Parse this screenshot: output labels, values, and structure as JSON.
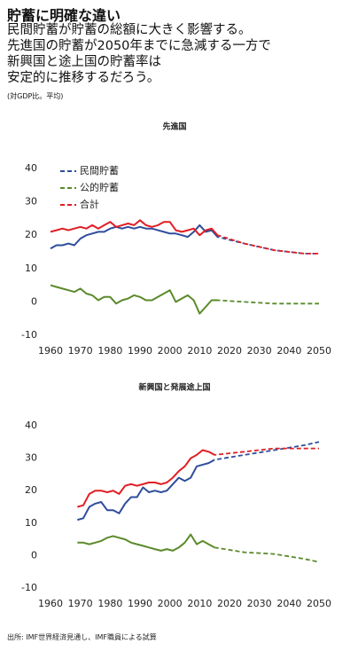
{
  "header": {
    "title": "貯蓄に明確な違い",
    "subtitle": [
      "民間貯蓄が貯蓄の総額に大きく影響する。",
      "先進国の貯蓄が2050年までに急減する一方で",
      "新興国と途上国の貯蓄率は",
      "安定的に推移するだろう。"
    ],
    "note": "(対GDP比。平均)"
  },
  "footer": {
    "source": "出所: IMF世界経済見通し、IMF職員による試算"
  },
  "chart_data": [
    {
      "type": "line",
      "title": "先進国",
      "legend": "upper left",
      "dashed_from": 2016,
      "x": [
        1960,
        1962,
        1964,
        1966,
        1968,
        1970,
        1972,
        1974,
        1976,
        1978,
        1980,
        1982,
        1984,
        1986,
        1988,
        1990,
        1992,
        1994,
        1996,
        1998,
        2000,
        2002,
        2004,
        2006,
        2008,
        2010,
        2012,
        2014,
        2016,
        2025,
        2035,
        2045,
        2050
      ],
      "xlim": [
        1960,
        2050
      ],
      "xticks": [
        1960,
        1970,
        1980,
        1990,
        2000,
        2010,
        2020,
        2030,
        2040,
        2050
      ],
      "ylim": [
        -10,
        40
      ],
      "yticks": [
        -10,
        0,
        10,
        20,
        30,
        40
      ],
      "series": [
        {
          "name": "民間貯蓄",
          "color": "#2e4d9b",
          "values": [
            16,
            17,
            17,
            17.5,
            17,
            19,
            20,
            20.5,
            21,
            21,
            22,
            22.5,
            22,
            22.5,
            22,
            22.5,
            22,
            22,
            21.5,
            21,
            20.5,
            20.5,
            20,
            19.5,
            21,
            23,
            21,
            21.5,
            19.5,
            17.5,
            15.5,
            14.5,
            14.5
          ]
        },
        {
          "name": "公的貯蓄",
          "color": "#5a8a2a",
          "values": [
            5,
            4.5,
            4,
            3.5,
            3,
            4,
            2.5,
            2,
            0.5,
            1.5,
            1.5,
            -0.5,
            0.5,
            1,
            2,
            1.5,
            0.5,
            0.5,
            1.5,
            2.5,
            3.5,
            0,
            1,
            2,
            0.5,
            -3.5,
            -1.5,
            0.5,
            0.5,
            0,
            -0.5,
            -0.5,
            -0.5
          ]
        },
        {
          "name": "合計",
          "color": "#e01e24",
          "values": [
            21,
            21.5,
            22,
            21.5,
            22,
            22.5,
            22,
            23,
            22,
            23,
            24,
            22.5,
            23,
            23.5,
            23,
            24.5,
            23,
            22.5,
            23,
            24,
            24,
            21.5,
            21,
            21.5,
            22,
            20,
            21.5,
            22,
            20,
            17.5,
            15.5,
            14.5,
            14.5
          ]
        }
      ]
    },
    {
      "type": "line",
      "title": "新興国と発展途上国",
      "dashed_from": 2015,
      "x": [
        1969,
        1971,
        1973,
        1975,
        1977,
        1979,
        1981,
        1983,
        1985,
        1987,
        1989,
        1991,
        1993,
        1995,
        1997,
        1999,
        2001,
        2003,
        2005,
        2007,
        2009,
        2011,
        2013,
        2015,
        2025,
        2035,
        2045,
        2050
      ],
      "xlim": [
        1960,
        2050
      ],
      "xticks": [
        1960,
        1970,
        1980,
        1990,
        2000,
        2010,
        2020,
        2030,
        2040,
        2050
      ],
      "ylim": [
        -10,
        40
      ],
      "yticks": [
        -10,
        0,
        10,
        20,
        30,
        40
      ],
      "series": [
        {
          "color": "#2e4d9b",
          "values": [
            11,
            11.5,
            15,
            16,
            16.5,
            14,
            14,
            13,
            16,
            18,
            18,
            21,
            19.5,
            20,
            19.5,
            20,
            22,
            24,
            23,
            24,
            27.5,
            28,
            28.5,
            29.5,
            31,
            32.5,
            34,
            35
          ]
        },
        {
          "color": "#5a8a2a",
          "values": [
            4,
            4,
            3.5,
            4,
            4.5,
            5.5,
            6,
            5.5,
            5,
            4,
            3.5,
            3,
            2.5,
            2,
            1.5,
            2,
            1.5,
            2.5,
            4,
            6.5,
            3.5,
            4.5,
            3.5,
            2.5,
            1,
            0.5,
            -1,
            -2
          ]
        },
        {
          "color": "#e01e24",
          "values": [
            15,
            15.5,
            19,
            20,
            20,
            19.5,
            20,
            19,
            21.5,
            22,
            21.5,
            22,
            22.5,
            22.5,
            22,
            22.5,
            24,
            26,
            27.5,
            30,
            31,
            32.5,
            32,
            31,
            32,
            33,
            33,
            33
          ]
        }
      ]
    }
  ]
}
